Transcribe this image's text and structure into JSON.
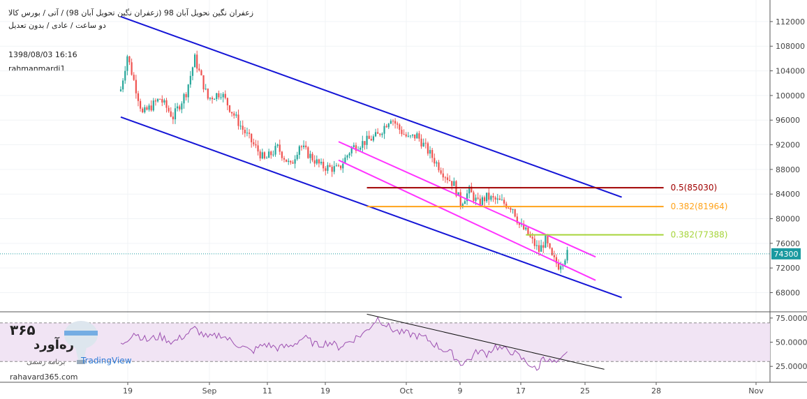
{
  "header": {
    "title_line1": "زعفران نگین تحویل آبان 98 (زعفران نگین تحویل آبان 98) / آتی / بورس کالا",
    "title_line2": "دو ساعت / عادی / بدون تعدیل",
    "datetime": "1398/08/03 16:16",
    "author": "rahmanmardi1"
  },
  "watermark": {
    "brand_digits": "۳۶۵",
    "brand_name": "ره‌آورد",
    "sub_brand": "برنامه رسمی",
    "tv_text": "TradingView",
    "url": "rahavard365.com"
  },
  "colors": {
    "up": "#26a69a",
    "down": "#ef5350",
    "channel": "#1414d6",
    "inner_channel": "#ff33ff",
    "fib_dark": "#a00000",
    "fib_orange": "#ffa31a",
    "fib_green": "#a6d43a",
    "rsi_line": "#9c4fb0",
    "rsi_band": "#f1e4f4",
    "price_tag": "#1a9aa0"
  },
  "chart_data": [
    {
      "type": "candlestick",
      "panel": "price",
      "x_ticks": [
        "19",
        "Sep",
        "11",
        "19",
        "Oct",
        "9",
        "17",
        "25",
        "28",
        "Nov"
      ],
      "y_ticks": [
        "112000",
        "108000",
        "104000",
        "100000",
        "96000",
        "92000",
        "88000",
        "84000",
        "80000",
        "76000",
        "72000",
        "68000"
      ],
      "ylim": [
        65000,
        115500
      ],
      "last_price": "74300",
      "anchor_closes": [
        [
          0,
          101000
        ],
        [
          3,
          106500
        ],
        [
          10,
          97000
        ],
        [
          18,
          99500
        ],
        [
          24,
          96500
        ],
        [
          30,
          100500
        ],
        [
          34,
          106000
        ],
        [
          40,
          99500
        ],
        [
          46,
          100500
        ],
        [
          50,
          98000
        ],
        [
          56,
          94500
        ],
        [
          60,
          92500
        ],
        [
          66,
          89500
        ],
        [
          72,
          91500
        ],
        [
          78,
          88500
        ],
        [
          82,
          92000
        ],
        [
          86,
          90500
        ],
        [
          92,
          88500
        ],
        [
          100,
          88000
        ],
        [
          106,
          91500
        ],
        [
          112,
          92500
        ],
        [
          118,
          93500
        ],
        [
          124,
          96500
        ],
        [
          128,
          94500
        ],
        [
          132,
          93000
        ],
        [
          136,
          93500
        ],
        [
          142,
          90500
        ],
        [
          148,
          87500
        ],
        [
          153,
          85500
        ],
        [
          156,
          82500
        ],
        [
          160,
          84500
        ],
        [
          164,
          82500
        ],
        [
          168,
          83500
        ],
        [
          172,
          83000
        ],
        [
          176,
          82500
        ],
        [
          180,
          81800
        ],
        [
          183,
          79000
        ],
        [
          186,
          77900
        ],
        [
          189,
          76300
        ],
        [
          192,
          74800
        ],
        [
          195,
          76500
        ],
        [
          198,
          73600
        ],
        [
          201,
          72400
        ],
        [
          205,
          74300
        ]
      ],
      "lines": [
        {
          "name": "upper-channel",
          "from": [
            0,
            112800
          ],
          "to": [
            230,
            83500
          ]
        },
        {
          "name": "lower-channel",
          "from": [
            0,
            96500
          ],
          "to": [
            230,
            67200
          ]
        },
        {
          "name": "magenta-upper",
          "from": [
            100,
            92500
          ],
          "to": [
            218,
            73800
          ]
        },
        {
          "name": "magenta-lower",
          "from": [
            100,
            89500
          ],
          "to": [
            218,
            70000
          ]
        }
      ],
      "levels": [
        {
          "label": "0.5(85030)",
          "value": 85030,
          "from": 113,
          "to": 230,
          "color": "#a00000"
        },
        {
          "label": "0.382(81964)",
          "value": 81964,
          "from": 113,
          "to": 230,
          "color": "#ffa31a"
        },
        {
          "label": "0.382(77388)",
          "value": 77388,
          "from": 186,
          "to": 230,
          "color": "#a6d43a"
        }
      ]
    },
    {
      "type": "line",
      "panel": "rsi",
      "y_ticks": [
        "75.0000",
        "50.0000",
        "25.0000"
      ],
      "ylim": [
        10,
        80
      ],
      "band": [
        30,
        70
      ],
      "trendline": {
        "from": [
          113,
          79
        ],
        "to": [
          222,
          22
        ]
      },
      "anchor_values": [
        [
          0,
          47
        ],
        [
          6,
          60
        ],
        [
          12,
          52
        ],
        [
          18,
          56
        ],
        [
          24,
          50
        ],
        [
          30,
          58
        ],
        [
          34,
          64
        ],
        [
          40,
          54
        ],
        [
          46,
          58
        ],
        [
          50,
          52
        ],
        [
          56,
          45
        ],
        [
          60,
          40
        ],
        [
          66,
          48
        ],
        [
          72,
          44
        ],
        [
          78,
          46
        ],
        [
          84,
          55
        ],
        [
          90,
          47
        ],
        [
          96,
          50
        ],
        [
          100,
          45
        ],
        [
          106,
          52
        ],
        [
          112,
          60
        ],
        [
          118,
          75
        ],
        [
          124,
          64
        ],
        [
          128,
          60
        ],
        [
          134,
          58
        ],
        [
          140,
          54
        ],
        [
          146,
          45
        ],
        [
          152,
          38
        ],
        [
          156,
          28
        ],
        [
          160,
          32
        ],
        [
          164,
          41
        ],
        [
          168,
          38
        ],
        [
          172,
          46
        ],
        [
          176,
          42
        ],
        [
          180,
          40
        ],
        [
          184,
          33
        ],
        [
          188,
          27
        ],
        [
          191,
          20
        ],
        [
          194,
          36
        ],
        [
          197,
          30
        ],
        [
          201,
          28
        ],
        [
          205,
          38
        ]
      ]
    }
  ]
}
